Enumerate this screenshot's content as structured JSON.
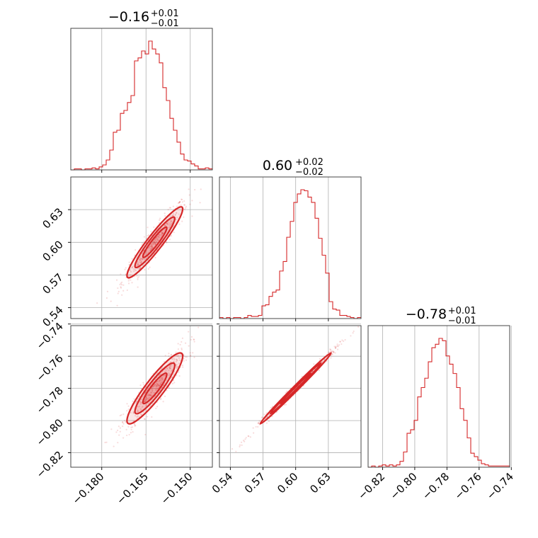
{
  "chart_data": {
    "type": "corner",
    "color": "#d62728",
    "grid": true,
    "parameters": [
      {
        "range": [
          -0.1905,
          -0.1425
        ],
        "ticks": [
          -0.18,
          -0.165,
          -0.15
        ],
        "tick_labels": [
          "−0.180",
          "−0.165",
          "−0.150"
        ]
      },
      {
        "range": [
          0.53,
          0.66
        ],
        "ticks": [
          0.54,
          0.57,
          0.6,
          0.63
        ],
        "tick_labels": [
          "0.54",
          "0.57",
          "0.60",
          "0.63"
        ]
      },
      {
        "range": [
          -0.829,
          -0.741
        ],
        "ticks": [
          -0.82,
          -0.8,
          -0.78,
          -0.76,
          -0.74
        ],
        "tick_labels": [
          "−0.82",
          "−0.80",
          "−0.78",
          "−0.76",
          "−0.74"
        ]
      }
    ],
    "titles": [
      {
        "value": "−0.16",
        "plus": "+0.01",
        "minus": "−0.01"
      },
      {
        "value": "0.60",
        "plus": "+0.02",
        "minus": "−0.02"
      },
      {
        "value": "−0.78",
        "plus": "+0.01",
        "minus": "−0.01"
      }
    ],
    "histograms": [
      {
        "edges_start": -0.1905,
        "bin_width": 0.0012,
        "counts": [
          0,
          1,
          1,
          0,
          1,
          1,
          2,
          1,
          3,
          5,
          10,
          20,
          38,
          40,
          57,
          60,
          68,
          75,
          110,
          113,
          120,
          117,
          130,
          122,
          117,
          108,
          83,
          70,
          52,
          40,
          28,
          16,
          10,
          9,
          6,
          4,
          1,
          1,
          2,
          1
        ]
      },
      {
        "edges_start": 0.53,
        "bin_width": 0.00325,
        "counts": [
          1,
          0,
          1,
          0,
          1,
          1,
          0,
          1,
          3,
          2,
          2,
          3,
          12,
          13,
          21,
          25,
          27,
          45,
          54,
          77,
          92,
          110,
          118,
          122,
          121,
          115,
          110,
          95,
          76,
          60,
          43,
          16,
          9,
          8,
          3,
          3,
          2,
          1,
          0,
          1
        ]
      },
      {
        "edges_start": -0.829,
        "bin_width": 0.0022,
        "counts": [
          0,
          1,
          0,
          1,
          2,
          1,
          2,
          1,
          2,
          5,
          13,
          29,
          32,
          40,
          60,
          68,
          76,
          90,
          102,
          105,
          110,
          108,
          95,
          88,
          80,
          68,
          50,
          40,
          25,
          12,
          9,
          6,
          3,
          2,
          1,
          1,
          1,
          1,
          1,
          1
        ]
      }
    ],
    "corr": [
      {
        "row": 1,
        "col": 0,
        "center": [
          -0.162,
          0.6
        ],
        "spread": [
          0.0045,
          0.0155
        ],
        "rho": 0.94
      },
      {
        "row": 2,
        "col": 0,
        "center": [
          -0.162,
          -0.78
        ],
        "spread": [
          0.0045,
          0.0105
        ],
        "rho": 0.91
      },
      {
        "row": 2,
        "col": 1,
        "center": [
          0.6,
          -0.78
        ],
        "spread": [
          0.0155,
          0.0105
        ],
        "rho": 0.995
      }
    ]
  }
}
